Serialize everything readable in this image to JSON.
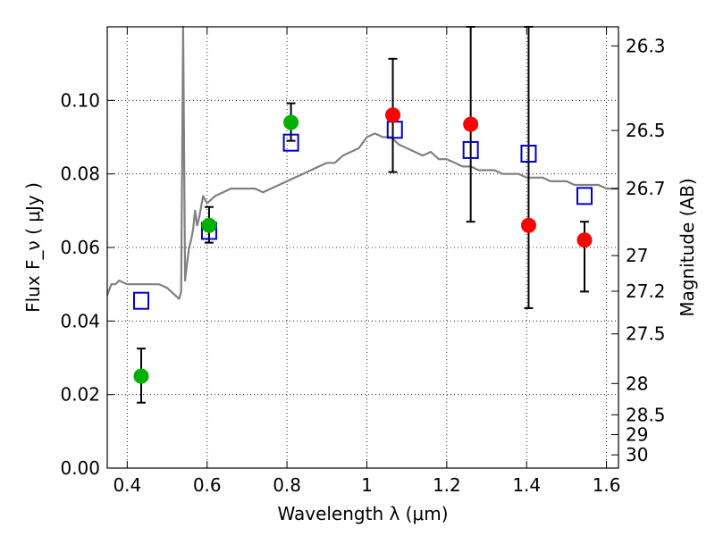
{
  "chart_data": {
    "type": "scatter",
    "xlabel": "Wavelength  λ (μm)",
    "ylabel": "Flux  F_ν  ( μJy )",
    "ylabel_right": "Magnitude (AB)",
    "xlim": [
      0.35,
      1.63
    ],
    "ylim": [
      0.0,
      0.12
    ],
    "x_ticks": [
      0.4,
      0.6,
      0.8,
      1.0,
      1.2,
      1.4,
      1.6
    ],
    "x_tick_labels": [
      "0.4",
      "0.6",
      "0.8",
      "1",
      "1.2",
      "1.4",
      "1.6"
    ],
    "y_ticks": [
      0.0,
      0.02,
      0.04,
      0.06,
      0.08,
      0.1
    ],
    "y_tick_labels": [
      "0.00",
      "0.02",
      "0.04",
      "0.06",
      "0.08",
      "0.10"
    ],
    "right_ticks": [
      {
        "label": "26.3",
        "flux": 0.1148
      },
      {
        "label": "26.5",
        "flux": 0.0918
      },
      {
        "label": "26.7",
        "flux": 0.076
      },
      {
        "label": "27",
        "flux": 0.0578
      },
      {
        "label": "27.2",
        "flux": 0.0481
      },
      {
        "label": "27.5",
        "flux": 0.0365
      },
      {
        "label": "28",
        "flux": 0.023
      },
      {
        "label": "28.5",
        "flux": 0.0145
      },
      {
        "label": "29",
        "flux": 0.0091
      },
      {
        "label": "30",
        "flux": 0.0036
      }
    ],
    "grid": "dotted",
    "series": [
      {
        "kind": "line",
        "color": "#808080",
        "x": [
          0.35,
          0.36,
          0.37,
          0.38,
          0.4,
          0.42,
          0.44,
          0.46,
          0.48,
          0.5,
          0.52,
          0.53,
          0.535,
          0.54,
          0.545,
          0.55,
          0.555,
          0.56,
          0.565,
          0.57,
          0.575,
          0.58,
          0.585,
          0.59,
          0.6,
          0.62,
          0.64,
          0.66,
          0.68,
          0.7,
          0.72,
          0.74,
          0.76,
          0.78,
          0.8,
          0.82,
          0.84,
          0.86,
          0.88,
          0.9,
          0.92,
          0.94,
          0.96,
          0.98,
          1.0,
          1.02,
          1.04,
          1.06,
          1.08,
          1.1,
          1.12,
          1.14,
          1.16,
          1.18,
          1.2,
          1.22,
          1.24,
          1.26,
          1.28,
          1.3,
          1.32,
          1.34,
          1.36,
          1.38,
          1.4,
          1.42,
          1.44,
          1.46,
          1.48,
          1.5,
          1.52,
          1.54,
          1.56,
          1.58,
          1.6,
          1.63
        ],
        "y": [
          0.047,
          0.05,
          0.05,
          0.051,
          0.05,
          0.05,
          0.05,
          0.05,
          0.05,
          0.049,
          0.047,
          0.046,
          0.048,
          0.12,
          0.051,
          0.056,
          0.06,
          0.062,
          0.065,
          0.07,
          0.066,
          0.068,
          0.071,
          0.074,
          0.072,
          0.074,
          0.075,
          0.076,
          0.076,
          0.076,
          0.076,
          0.075,
          0.076,
          0.077,
          0.078,
          0.079,
          0.08,
          0.081,
          0.082,
          0.083,
          0.083,
          0.085,
          0.086,
          0.087,
          0.09,
          0.091,
          0.09,
          0.09,
          0.088,
          0.087,
          0.086,
          0.085,
          0.086,
          0.084,
          0.084,
          0.083,
          0.082,
          0.082,
          0.081,
          0.081,
          0.081,
          0.08,
          0.08,
          0.08,
          0.079,
          0.079,
          0.079,
          0.078,
          0.078,
          0.078,
          0.077,
          0.077,
          0.077,
          0.077,
          0.076,
          0.076
        ]
      },
      {
        "kind": "points",
        "marker": "square",
        "color": "#0000cc",
        "x": [
          0.435,
          0.605,
          0.81,
          1.07,
          1.26,
          1.405,
          1.545
        ],
        "y": [
          0.0455,
          0.0645,
          0.0885,
          0.092,
          0.0865,
          0.0855,
          0.074
        ]
      },
      {
        "kind": "points",
        "marker": "circle",
        "color": "#00b000",
        "x": [
          0.435,
          0.605,
          0.81
        ],
        "y": [
          0.025,
          0.066,
          0.094
        ],
        "err_low": [
          0.0178,
          0.0613,
          0.089
        ],
        "err_high": [
          0.0325,
          0.071,
          0.0992
        ]
      },
      {
        "kind": "points",
        "marker": "circle",
        "color": "#ff0000",
        "x": [
          1.065,
          1.26,
          1.405,
          1.545
        ],
        "y": [
          0.096,
          0.0935,
          0.066,
          0.062
        ],
        "err_low": [
          0.0805,
          0.067,
          0.0435,
          0.048
        ],
        "err_high": [
          0.1113,
          0.12,
          0.12,
          0.067
        ]
      }
    ]
  }
}
